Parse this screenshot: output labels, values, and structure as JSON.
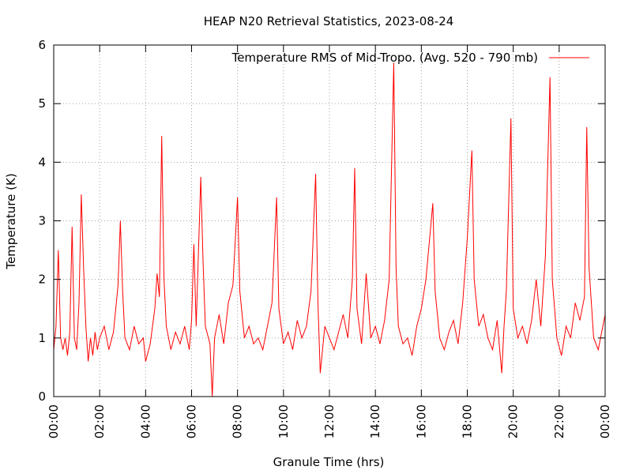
{
  "chart_data": {
    "type": "line",
    "title": "HEAP N20 Retrieval Statistics, 2023-08-24",
    "x_label": "Granule Time (hrs)",
    "y_label": "Temperature (K)",
    "xlim": [
      0,
      24
    ],
    "ylim": [
      0,
      6
    ],
    "xticks": [
      {
        "value": 0,
        "label": "00:00"
      },
      {
        "value": 2,
        "label": "02:00"
      },
      {
        "value": 4,
        "label": "04:00"
      },
      {
        "value": 6,
        "label": "06:00"
      },
      {
        "value": 8,
        "label": "08:00"
      },
      {
        "value": 10,
        "label": "10:00"
      },
      {
        "value": 12,
        "label": "12:00"
      },
      {
        "value": 14,
        "label": "14:00"
      },
      {
        "value": 16,
        "label": "16:00"
      },
      {
        "value": 18,
        "label": "18:00"
      },
      {
        "value": 20,
        "label": "20:00"
      },
      {
        "value": 22,
        "label": "22:00"
      },
      {
        "value": 24,
        "label": "00:00"
      }
    ],
    "yticks": [
      0,
      1,
      2,
      3,
      4,
      5,
      6
    ],
    "grid": true,
    "legend": "upper right",
    "x": [
      0.0,
      0.1,
      0.2,
      0.3,
      0.4,
      0.5,
      0.6,
      0.7,
      0.8,
      0.9,
      1.0,
      1.1,
      1.2,
      1.3,
      1.4,
      1.5,
      1.6,
      1.7,
      1.8,
      1.9,
      2.0,
      2.2,
      2.4,
      2.6,
      2.8,
      2.9,
      3.0,
      3.1,
      3.3,
      3.5,
      3.7,
      3.9,
      4.0,
      4.2,
      4.4,
      4.5,
      4.6,
      4.7,
      4.8,
      4.9,
      5.1,
      5.3,
      5.5,
      5.7,
      5.9,
      6.0,
      6.1,
      6.2,
      6.4,
      6.5,
      6.6,
      6.8,
      6.9,
      7.0,
      7.2,
      7.4,
      7.6,
      7.8,
      8.0,
      8.1,
      8.3,
      8.5,
      8.7,
      8.9,
      9.1,
      9.3,
      9.5,
      9.7,
      9.8,
      10.0,
      10.2,
      10.4,
      10.6,
      10.8,
      11.0,
      11.2,
      11.4,
      11.5,
      11.6,
      11.8,
      12.0,
      12.2,
      12.4,
      12.6,
      12.8,
      13.0,
      13.1,
      13.2,
      13.4,
      13.6,
      13.8,
      14.0,
      14.2,
      14.4,
      14.6,
      14.8,
      14.9,
      15.0,
      15.2,
      15.4,
      15.6,
      15.8,
      16.0,
      16.2,
      16.5,
      16.6,
      16.8,
      17.0,
      17.2,
      17.4,
      17.6,
      17.8,
      18.0,
      18.2,
      18.3,
      18.5,
      18.7,
      18.9,
      19.1,
      19.3,
      19.5,
      19.6,
      19.7,
      19.9,
      20.0,
      20.2,
      20.4,
      20.6,
      20.8,
      21.0,
      21.2,
      21.4,
      21.6,
      21.7,
      21.9,
      22.1,
      22.3,
      22.5,
      22.7,
      22.9,
      23.1,
      23.2,
      23.3,
      23.5,
      23.7,
      23.9,
      24.0
    ],
    "series": [
      {
        "name": "Temperature RMS of Mid-Tropo. (Avg. 520 - 790 mb)",
        "color": "#ff0000",
        "values": [
          0.8,
          1.2,
          2.5,
          1.0,
          0.8,
          1.0,
          0.7,
          1.1,
          2.9,
          1.0,
          0.8,
          1.6,
          3.45,
          2.2,
          1.2,
          0.6,
          1.0,
          0.7,
          1.1,
          0.8,
          1.0,
          1.2,
          0.8,
          1.1,
          1.9,
          3.0,
          1.8,
          1.0,
          0.8,
          1.2,
          0.9,
          1.0,
          0.6,
          0.9,
          1.5,
          2.1,
          1.7,
          4.45,
          2.0,
          1.2,
          0.8,
          1.1,
          0.9,
          1.2,
          0.8,
          1.3,
          2.6,
          1.2,
          3.75,
          2.3,
          1.2,
          0.9,
          0.0,
          1.0,
          1.4,
          0.9,
          1.6,
          1.9,
          3.4,
          1.8,
          1.0,
          1.2,
          0.9,
          1.0,
          0.8,
          1.2,
          1.6,
          3.4,
          1.5,
          0.9,
          1.1,
          0.8,
          1.3,
          1.0,
          1.2,
          1.8,
          3.8,
          1.6,
          0.4,
          1.2,
          1.0,
          0.8,
          1.1,
          1.4,
          1.0,
          2.0,
          3.9,
          1.5,
          0.9,
          2.1,
          1.0,
          1.2,
          0.9,
          1.3,
          2.0,
          5.7,
          2.2,
          1.2,
          0.9,
          1.0,
          0.7,
          1.2,
          1.5,
          2.0,
          3.3,
          1.8,
          1.0,
          0.8,
          1.1,
          1.3,
          0.9,
          1.6,
          2.7,
          4.2,
          2.0,
          1.2,
          1.4,
          1.0,
          0.8,
          1.3,
          0.4,
          1.2,
          1.8,
          4.75,
          1.5,
          1.0,
          1.2,
          0.9,
          1.3,
          2.0,
          1.2,
          2.4,
          5.45,
          2.0,
          1.0,
          0.7,
          1.2,
          1.0,
          1.6,
          1.3,
          1.7,
          4.6,
          2.2,
          1.0,
          0.8,
          1.2,
          1.4
        ]
      }
    ]
  }
}
